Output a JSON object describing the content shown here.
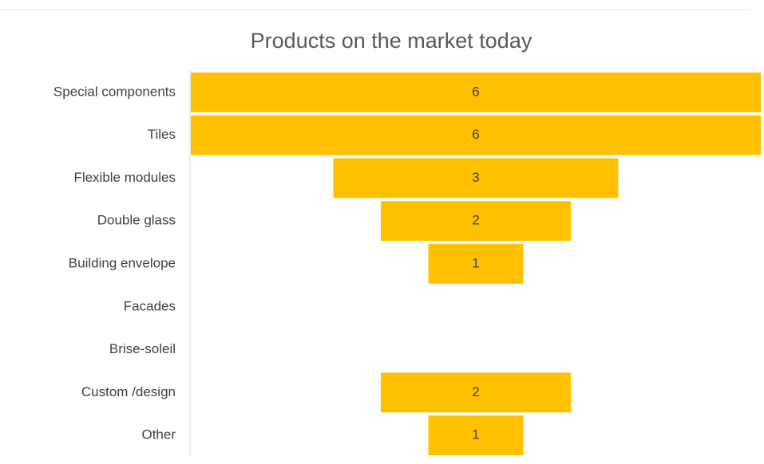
{
  "chart_data": {
    "type": "funnel",
    "title": "Products on the market today",
    "categories": [
      "Special components",
      "Tiles",
      "Flexible modules",
      "Double glass",
      "Building envelope",
      "Facades",
      "Brise-soleil",
      "Custom /design",
      "Other"
    ],
    "values": [
      6,
      6,
      3,
      2,
      1,
      null,
      null,
      2,
      1
    ],
    "color": "#ffc000"
  }
}
